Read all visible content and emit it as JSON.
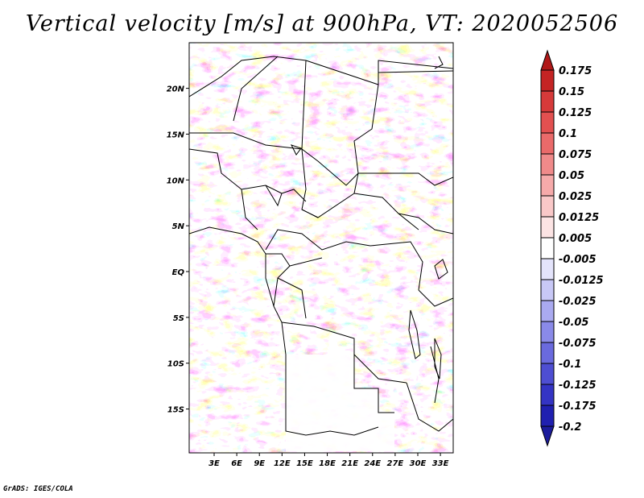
{
  "title": "Vertical velocity [m/s] at 900hPa, VT: 2020052506",
  "credit": "GrADS: IGES/COLA",
  "map": {
    "variable": "Vertical velocity",
    "units": "m/s",
    "level": "900hPa",
    "valid_time": "2020052506",
    "lat_labels": [
      {
        "text": "20N",
        "lat": 20
      },
      {
        "text": "15N",
        "lat": 15
      },
      {
        "text": "10N",
        "lat": 10
      },
      {
        "text": "5N",
        "lat": 5
      },
      {
        "text": "EQ",
        "lat": 0
      },
      {
        "text": "5S",
        "lat": -5
      },
      {
        "text": "10S",
        "lat": -10
      },
      {
        "text": "15S",
        "lat": -15
      }
    ],
    "lon_labels": [
      {
        "text": "3E",
        "lon": 3
      },
      {
        "text": "6E",
        "lon": 6
      },
      {
        "text": "9E",
        "lon": 9
      },
      {
        "text": "12E",
        "lon": 12
      },
      {
        "text": "15E",
        "lon": 15
      },
      {
        "text": "18E",
        "lon": 18
      },
      {
        "text": "21E",
        "lon": 21
      },
      {
        "text": "24E",
        "lon": 24
      },
      {
        "text": "27E",
        "lon": 27
      },
      {
        "text": "30E",
        "lon": 30
      },
      {
        "text": "33E",
        "lon": 33
      }
    ]
  },
  "colorbar": {
    "levels": [
      "0.175",
      "0.15",
      "0.125",
      "0.1",
      "0.075",
      "0.05",
      "0.025",
      "0.0125",
      "0.005",
      "-0.005",
      "-0.0125",
      "-0.025",
      "-0.05",
      "-0.075",
      "-0.1",
      "-0.125",
      "-0.175",
      "-0.2"
    ],
    "colors": [
      "#b01818",
      "#c42424",
      "#d63a3a",
      "#e25050",
      "#ea6a6a",
      "#f08a8a",
      "#f6aaaa",
      "#f9c8c8",
      "#fce4e4",
      "#ffffff",
      "#e4e4fb",
      "#c8c8f6",
      "#aaaaf0",
      "#8a8ae8",
      "#6a6ade",
      "#4e4ed2",
      "#3434c4",
      "#2020b0",
      "#1c1c9c"
    ]
  }
}
